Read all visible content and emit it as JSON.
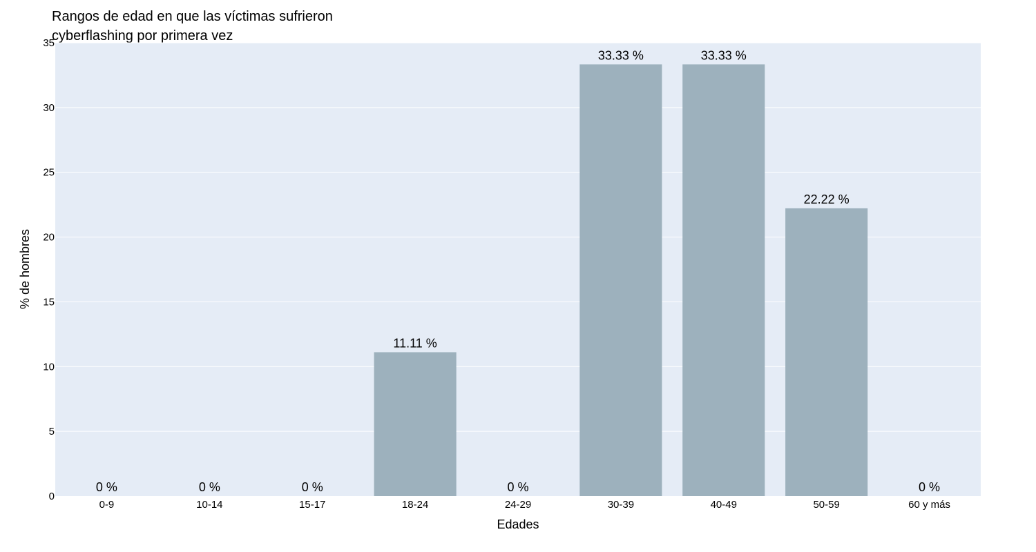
{
  "chart_data": {
    "type": "bar",
    "title": "Rangos de edad en que las víctimas sufrieron cyberflashing por primera vez",
    "xlabel": "Edades",
    "ylabel": "% de hombres",
    "categories": [
      "0-9",
      "10-14",
      "15-17",
      "18-24",
      "24-29",
      "30-39",
      "40-49",
      "50-59",
      "60 y más"
    ],
    "values": [
      0,
      0,
      0,
      11.11,
      0,
      33.33,
      33.33,
      22.22,
      0
    ],
    "data_labels": [
      "0 %",
      "0 %",
      "0 %",
      "11.11 %",
      "0 %",
      "33.33 %",
      "33.33 %",
      "22.22 %",
      "0 %"
    ],
    "ylim": [
      0,
      35
    ],
    "yticks": [
      0,
      5,
      10,
      15,
      20,
      25,
      30,
      35
    ],
    "grid": true,
    "legend": "none",
    "colors": {
      "bar": "#9db1bd",
      "plot_bg": "#e5ecf6",
      "grid": "#ffffff"
    }
  }
}
